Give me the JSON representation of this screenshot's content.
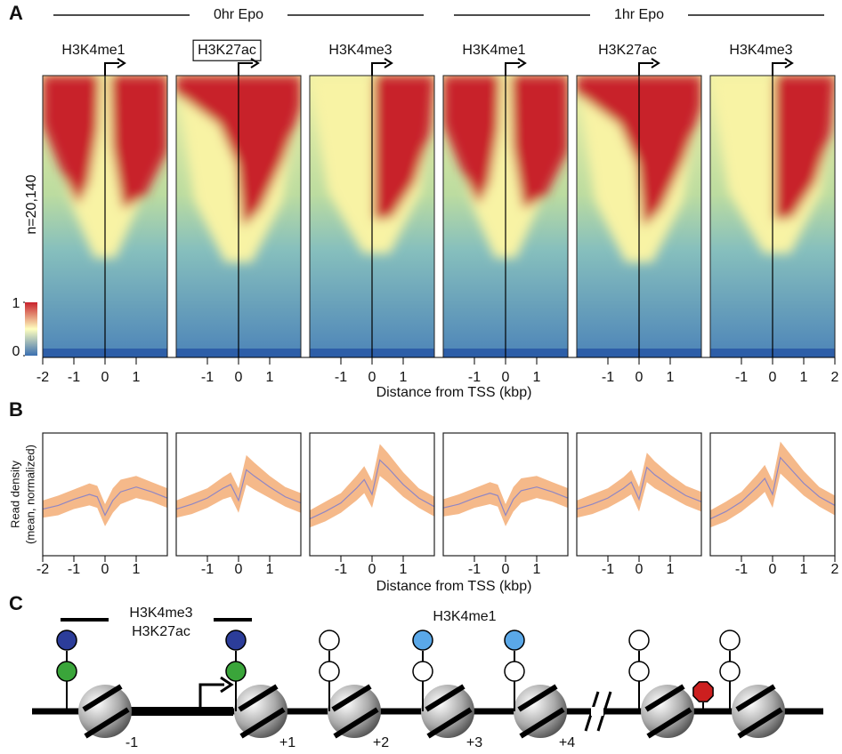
{
  "panel_labels": [
    "A",
    "B",
    "C"
  ],
  "chart_data": [
    {
      "type": "heatmap",
      "groups": [
        "0hr Epo",
        "1hr Epo"
      ],
      "ylabel": "n=20,140",
      "xlabel": "Distance from TSS (kbp)",
      "xlim": [
        -2,
        2
      ],
      "colorbar": {
        "ticks": [
          0,
          1
        ],
        "colors": [
          "#3a6fb0",
          "#ffffbf",
          "#c8222c"
        ]
      },
      "panels": [
        {
          "title": "H3K4me1",
          "xticks": [
            -2,
            -1,
            0,
            1
          ]
        },
        {
          "title": "H3K27ac",
          "xticks": [
            -1,
            0,
            1
          ],
          "boxed": true
        },
        {
          "title": "H3K4me3",
          "xticks": [
            -1,
            0,
            1
          ]
        },
        {
          "title": "H3K4me1",
          "xticks": [
            -1,
            0,
            1
          ]
        },
        {
          "title": "H3K27ac",
          "xticks": [
            -1,
            0,
            1
          ]
        },
        {
          "title": "H3K4me3",
          "xticks": [
            -1,
            0,
            1,
            2
          ]
        }
      ]
    },
    {
      "type": "line",
      "ylabel": [
        "Read density",
        "(mean, normalized)"
      ],
      "xlabel": "Distance from TSS (kbp)",
      "xlim": [
        -2,
        2
      ],
      "ylim": [
        0,
        1
      ],
      "color": "#8f86c4",
      "band_color": "#f5b98a",
      "x": [
        -2,
        -1.5,
        -1,
        -0.5,
        -0.25,
        0,
        0.25,
        0.5,
        1,
        1.5,
        2
      ],
      "panels": [
        {
          "xticks": [
            -2,
            -1,
            0,
            1
          ],
          "values": [
            0.38,
            0.41,
            0.46,
            0.5,
            0.48,
            0.33,
            0.45,
            0.52,
            0.56,
            0.52,
            0.47
          ],
          "error": [
            0.07,
            0.08,
            0.08,
            0.09,
            0.09,
            0.09,
            0.1,
            0.1,
            0.09,
            0.08,
            0.08
          ]
        },
        {
          "xticks": [
            -1,
            0,
            1
          ],
          "values": [
            0.38,
            0.42,
            0.47,
            0.55,
            0.58,
            0.45,
            0.7,
            0.65,
            0.56,
            0.48,
            0.43
          ],
          "error": [
            0.07,
            0.08,
            0.08,
            0.09,
            0.1,
            0.1,
            0.12,
            0.11,
            0.09,
            0.08,
            0.08
          ]
        },
        {
          "xticks": [
            -1,
            0,
            1
          ],
          "values": [
            0.3,
            0.36,
            0.43,
            0.55,
            0.62,
            0.5,
            0.78,
            0.72,
            0.58,
            0.47,
            0.4
          ],
          "error": [
            0.07,
            0.08,
            0.08,
            0.1,
            0.11,
            0.11,
            0.13,
            0.12,
            0.1,
            0.08,
            0.08
          ]
        },
        {
          "xticks": [
            -1,
            0,
            1
          ],
          "values": [
            0.39,
            0.42,
            0.47,
            0.51,
            0.49,
            0.33,
            0.46,
            0.53,
            0.56,
            0.52,
            0.47
          ],
          "error": [
            0.07,
            0.08,
            0.08,
            0.09,
            0.09,
            0.09,
            0.1,
            0.1,
            0.09,
            0.08,
            0.08
          ]
        },
        {
          "xticks": [
            -1,
            0,
            1
          ],
          "values": [
            0.38,
            0.42,
            0.47,
            0.55,
            0.6,
            0.46,
            0.72,
            0.66,
            0.57,
            0.49,
            0.44
          ],
          "error": [
            0.07,
            0.08,
            0.08,
            0.09,
            0.1,
            0.1,
            0.12,
            0.11,
            0.09,
            0.08,
            0.08
          ]
        },
        {
          "xticks": [
            -1,
            0,
            1,
            2
          ],
          "values": [
            0.3,
            0.36,
            0.44,
            0.56,
            0.63,
            0.5,
            0.8,
            0.73,
            0.59,
            0.48,
            0.41
          ],
          "error": [
            0.07,
            0.08,
            0.08,
            0.1,
            0.11,
            0.11,
            0.13,
            0.12,
            0.1,
            0.08,
            0.08
          ]
        }
      ]
    }
  ],
  "diagram": {
    "labels": [
      "H3K4me3",
      "H3K27ac",
      "H3K4me1"
    ],
    "nucleosomes": [
      "-1",
      "+1",
      "+2",
      "+3",
      "+4",
      null,
      null
    ]
  }
}
